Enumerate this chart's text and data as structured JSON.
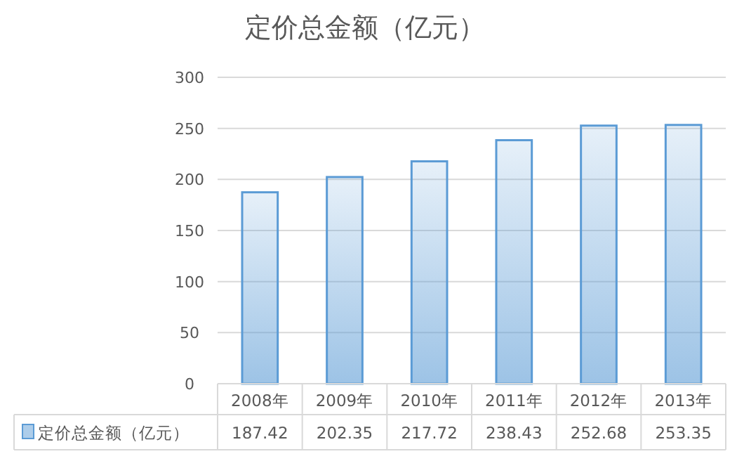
{
  "chart_data": {
    "type": "bar",
    "title": "定价总金额（亿元）",
    "categories": [
      "2008年",
      "2009年",
      "2010年",
      "2011年",
      "2012年",
      "2013年"
    ],
    "series": [
      {
        "name": "定价总金额（亿元）",
        "color": "#5b9bd5",
        "values": [
          187.42,
          202.35,
          217.72,
          238.43,
          252.68,
          253.35
        ]
      }
    ],
    "ylim": [
      0,
      300
    ],
    "yticks": [
      0,
      50,
      100,
      150,
      200,
      250,
      300
    ],
    "grid": "y",
    "data_labels": true,
    "legend": "bottom"
  }
}
